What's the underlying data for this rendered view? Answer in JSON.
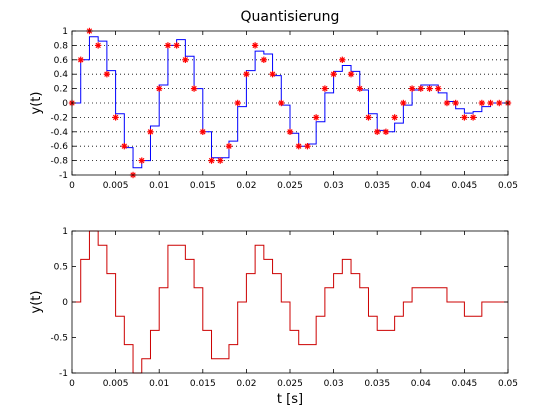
{
  "chart_data": [
    {
      "type": "line",
      "title": "Quantisierung",
      "xlabel": "",
      "ylabel": "y(t)",
      "xlim": [
        0,
        0.05
      ],
      "ylim": [
        -1,
        1
      ],
      "grid": "horizontal-dotted",
      "xticks": [
        "0",
        "0.005",
        "0.01",
        "0.015",
        "0.02",
        "0.025",
        "0.03",
        "0.035",
        "0.04",
        "0.045",
        "0.05"
      ],
      "yticks": [
        "-1",
        "-0.8",
        "-0.6",
        "-0.4",
        "-0.2",
        "0",
        "0.2",
        "0.4",
        "0.6",
        "0.8",
        "1"
      ],
      "series": [
        {
          "style": "step",
          "color": "#0000ff",
          "x": [
            0,
            0.001,
            0.002,
            0.003,
            0.004,
            0.005,
            0.006,
            0.007,
            0.008,
            0.009,
            0.01,
            0.011,
            0.012,
            0.013,
            0.014,
            0.015,
            0.016,
            0.017,
            0.018,
            0.019,
            0.02,
            0.021,
            0.022,
            0.023,
            0.024,
            0.025,
            0.026,
            0.027,
            0.028,
            0.029,
            0.03,
            0.031,
            0.032,
            0.033,
            0.034,
            0.035,
            0.036,
            0.037,
            0.038,
            0.039,
            0.04,
            0.041,
            0.042,
            0.043,
            0.044,
            0.045,
            0.046,
            0.047,
            0.048,
            0.049,
            0.05
          ],
          "values": [
            0,
            0.6,
            0.92,
            0.86,
            0.45,
            -0.15,
            -0.62,
            -0.9,
            -0.8,
            -0.32,
            0.25,
            0.8,
            0.88,
            0.65,
            0.2,
            -0.4,
            -0.76,
            -0.76,
            -0.53,
            -0.05,
            0.45,
            0.72,
            0.68,
            0.38,
            -0.03,
            -0.42,
            -0.6,
            -0.57,
            -0.26,
            0.14,
            0.44,
            0.52,
            0.44,
            0.18,
            -0.15,
            -0.38,
            -0.4,
            -0.28,
            -0.03,
            0.18,
            0.25,
            0.25,
            0.14,
            0.02,
            -0.08,
            -0.14,
            -0.12,
            -0.05,
            0.0,
            0.0,
            0.0
          ]
        },
        {
          "style": "markers",
          "marker": "*",
          "color": "#ff0000",
          "x": [
            0,
            0.001,
            0.002,
            0.003,
            0.004,
            0.005,
            0.006,
            0.007,
            0.008,
            0.009,
            0.01,
            0.011,
            0.012,
            0.013,
            0.014,
            0.015,
            0.016,
            0.017,
            0.018,
            0.019,
            0.02,
            0.021,
            0.022,
            0.023,
            0.024,
            0.025,
            0.026,
            0.027,
            0.028,
            0.029,
            0.03,
            0.031,
            0.032,
            0.033,
            0.034,
            0.035,
            0.036,
            0.037,
            0.038,
            0.039,
            0.04,
            0.041,
            0.042,
            0.043,
            0.044,
            0.045,
            0.046,
            0.047,
            0.048,
            0.049,
            0.05
          ],
          "values": [
            0,
            0.6,
            1.0,
            0.8,
            0.4,
            -0.2,
            -0.6,
            -1.0,
            -0.8,
            -0.4,
            0.2,
            0.8,
            0.8,
            0.6,
            0.2,
            -0.4,
            -0.8,
            -0.8,
            -0.6,
            0.0,
            0.4,
            0.8,
            0.6,
            0.4,
            0.0,
            -0.4,
            -0.6,
            -0.6,
            -0.2,
            0.2,
            0.4,
            0.6,
            0.4,
            0.2,
            -0.2,
            -0.4,
            -0.4,
            -0.2,
            0.0,
            0.2,
            0.2,
            0.2,
            0.2,
            0.0,
            0.0,
            -0.2,
            -0.2,
            0.0,
            0.0,
            0.0,
            0.0
          ]
        }
      ]
    },
    {
      "type": "line",
      "title": "",
      "xlabel": "t [s]",
      "ylabel": "y(t)",
      "xlim": [
        0,
        0.05
      ],
      "ylim": [
        -1,
        1
      ],
      "grid": "off",
      "xticks": [
        "0",
        "0.005",
        "0.01",
        "0.015",
        "0.02",
        "0.025",
        "0.03",
        "0.035",
        "0.04",
        "0.045",
        "0.05"
      ],
      "yticks": [
        "-1",
        "-0.5",
        "0",
        "0.5",
        "1"
      ],
      "series": [
        {
          "style": "step",
          "color": "#cc0000",
          "x": [
            0,
            0.001,
            0.002,
            0.003,
            0.004,
            0.005,
            0.006,
            0.007,
            0.008,
            0.009,
            0.01,
            0.011,
            0.012,
            0.013,
            0.014,
            0.015,
            0.016,
            0.017,
            0.018,
            0.019,
            0.02,
            0.021,
            0.022,
            0.023,
            0.024,
            0.025,
            0.026,
            0.027,
            0.028,
            0.029,
            0.03,
            0.031,
            0.032,
            0.033,
            0.034,
            0.035,
            0.036,
            0.037,
            0.038,
            0.039,
            0.04,
            0.041,
            0.042,
            0.043,
            0.044,
            0.045,
            0.046,
            0.047,
            0.048,
            0.049,
            0.05
          ],
          "values": [
            0,
            0.6,
            1.0,
            0.8,
            0.4,
            -0.2,
            -0.6,
            -1.0,
            -0.8,
            -0.4,
            0.2,
            0.8,
            0.8,
            0.6,
            0.2,
            -0.4,
            -0.8,
            -0.8,
            -0.6,
            0.0,
            0.4,
            0.8,
            0.6,
            0.4,
            0.0,
            -0.4,
            -0.6,
            -0.6,
            -0.2,
            0.2,
            0.4,
            0.6,
            0.4,
            0.2,
            -0.2,
            -0.4,
            -0.4,
            -0.2,
            0.0,
            0.2,
            0.2,
            0.2,
            0.2,
            0.0,
            0.0,
            -0.2,
            -0.2,
            0.0,
            0.0,
            0.0,
            0.0
          ]
        }
      ]
    }
  ]
}
